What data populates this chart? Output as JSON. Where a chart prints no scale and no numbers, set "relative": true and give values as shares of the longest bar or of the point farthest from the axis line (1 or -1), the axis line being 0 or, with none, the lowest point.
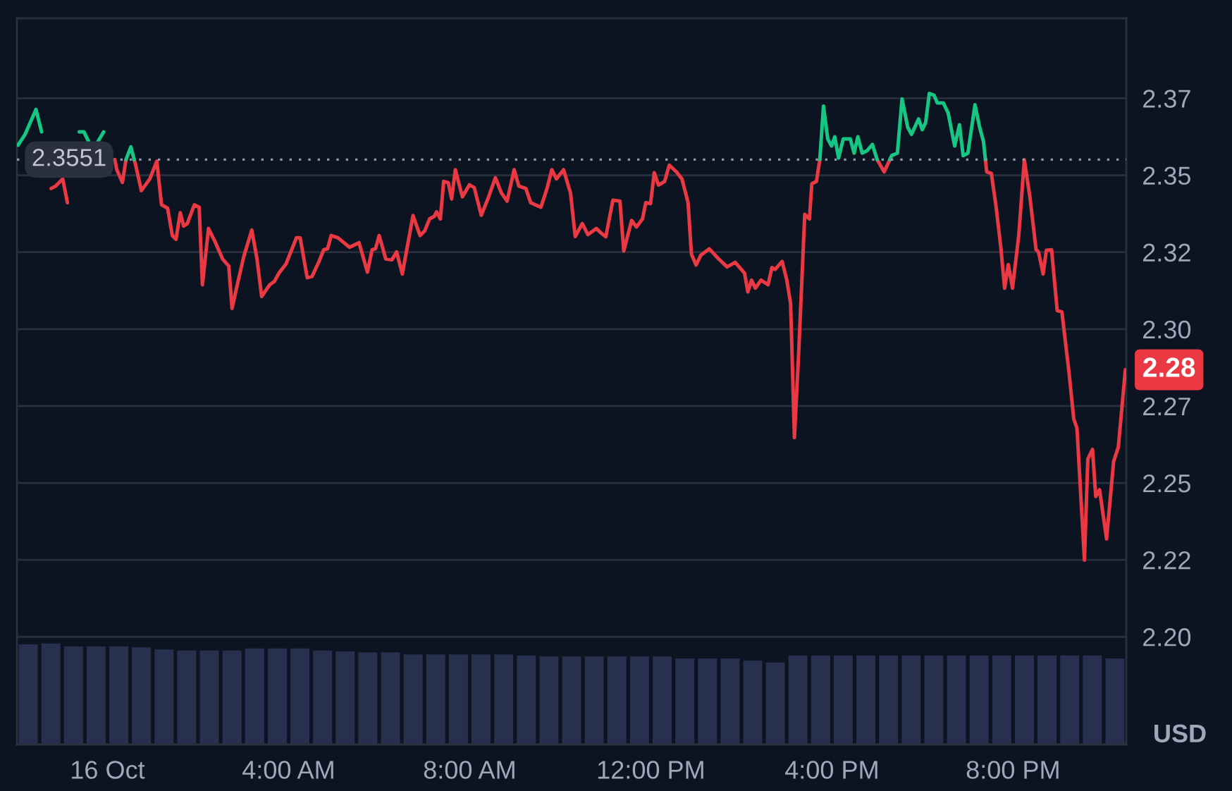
{
  "chart_data": [
    {
      "type": "line",
      "series": [
        {
          "color": "#ea3943",
          "x": [
            -1.246,
            -1.143,
            -0.988,
            -0.885,
            -0.779,
            0.162,
            0.206,
            0.33,
            0.409,
            0.517,
            0.59,
            0.623,
            0.748,
            0.935,
            1.09,
            1.193,
            1.327,
            1.433,
            1.514,
            1.607,
            1.682,
            1.763,
            1.919,
            2.025,
            2.097,
            2.231,
            2.386,
            2.542,
            2.679,
            2.751,
            2.854,
            3.009,
            3.187,
            3.302,
            3.405,
            3.508,
            3.583,
            3.685,
            3.788,
            3.944,
            4.174,
            4.255,
            4.411,
            4.517,
            4.673,
            4.776,
            4.86,
            4.941,
            5.087,
            5.346,
            5.555,
            5.741,
            5.844,
            5.919,
            6.0,
            6.146,
            6.28,
            6.386,
            6.511,
            6.748,
            6.903,
            7.009,
            7.112,
            7.215,
            7.268,
            7.352,
            7.424,
            7.526,
            7.601,
            7.682,
            7.838,
            7.994,
            8.1,
            8.255,
            8.411,
            8.567,
            8.701,
            8.826,
            8.981,
            9.084,
            9.24,
            9.346,
            9.573,
            9.707,
            9.813,
            9.916,
            10.072,
            10.227,
            10.33,
            10.486,
            10.611,
            10.798,
            10.903,
            11.006,
            11.162,
            11.318,
            11.402,
            11.576,
            11.682,
            11.816,
            11.888,
            11.994,
            12.075,
            12.168,
            12.305,
            12.408,
            12.564,
            12.688,
            12.822,
            12.897,
            13.0,
            13.103,
            13.29,
            13.498,
            13.685,
            13.863,
            14.069,
            14.143,
            14.224,
            14.308,
            14.433,
            14.589,
            14.673,
            14.745,
            14.9,
            15.003,
            15.087,
            15.171,
            15.265,
            15.399,
            15.502,
            15.555,
            15.657,
            15.732,
            15.813,
            16.997,
            17.153,
            17.279,
            17.321,
            19.389,
            19.417,
            19.52,
            19.626,
            19.729,
            19.813,
            19.894,
            19.988,
            20.125,
            20.249,
            20.374,
            20.508,
            20.561,
            20.664,
            20.735,
            20.85,
            20.975,
            21.078,
            21.234,
            21.34,
            21.411,
            21.576,
            21.651,
            21.754,
            21.826,
            21.91,
            22.065,
            22.221,
            22.324,
            22.48
          ],
          "values": [
            2.3457,
            2.3465,
            2.3488,
            2.3411,
            null,
            2.3551,
            2.3518,
            2.3477,
            2.3551,
            null,
            2.3551,
            2.3533,
            2.345,
            2.3488,
            2.3546,
            2.3404,
            2.3393,
            2.3304,
            2.3292,
            2.3378,
            2.3335,
            2.3343,
            2.3404,
            2.3396,
            2.3144,
            2.3327,
            2.3281,
            2.3228,
            2.3205,
            2.3067,
            2.3136,
            2.3235,
            2.3322,
            2.3228,
            2.3106,
            2.3128,
            2.3144,
            2.3155,
            2.3182,
            2.3212,
            2.3297,
            2.3297,
            2.3167,
            2.3171,
            2.322,
            2.3258,
            2.3261,
            2.3304,
            2.3297,
            2.3266,
            2.3281,
            2.3185,
            2.3258,
            2.3261,
            2.3304,
            2.3228,
            2.3225,
            2.3251,
            2.3179,
            2.3369,
            2.3304,
            2.332,
            2.3358,
            2.3366,
            2.3381,
            2.3358,
            2.348,
            2.3476,
            2.3423,
            2.3518,
            2.343,
            2.3469,
            2.346,
            2.337,
            2.3427,
            2.3492,
            2.3442,
            2.3416,
            2.3518,
            2.3465,
            2.3457,
            2.3411,
            2.3396,
            2.3457,
            2.3518,
            2.3488,
            2.3518,
            2.3442,
            2.3301,
            2.3343,
            2.3307,
            2.3327,
            2.3312,
            2.33,
            2.3419,
            2.3416,
            2.3254,
            2.3353,
            2.3332,
            2.3358,
            2.3411,
            2.3408,
            2.3508,
            2.3468,
            2.348,
            2.3533,
            2.3511,
            2.3488,
            2.3411,
            2.3243,
            2.3208,
            2.324,
            2.3261,
            2.3228,
            2.3202,
            2.3217,
            2.3182,
            2.3121,
            2.3159,
            2.3133,
            2.3159,
            2.3144,
            2.32,
            2.3194,
            2.322,
            2.3159,
            2.3083,
            2.2647,
            2.2922,
            2.3373,
            2.3358,
            2.3472,
            2.348,
            2.3551,
            null,
            2.3551,
            2.3511,
            2.3551,
            null,
            2.3551,
            2.3511,
            2.3506,
            2.3396,
            2.3266,
            2.3133,
            2.321,
            2.3133,
            2.3304,
            2.355,
            2.3427,
            2.3258,
            2.3251,
            2.3179,
            2.3256,
            2.3258,
            2.306,
            2.3056,
            2.2861,
            2.2708,
            2.2678,
            2.2249,
            2.2578,
            2.2609,
            2.2456,
            2.2478,
            2.2318,
            2.257,
            2.2616,
            2.2868
          ]
        },
        {
          "color": "#16c784",
          "x": [
            -1.975,
            -1.819,
            -1.579,
            -1.455,
            -1.353,
            -0.623,
            -0.52,
            -0.417,
            -0.312,
            -0.209,
            -0.084,
            0.103,
            0.409,
            0.517,
            0.59,
            0.623,
            15.732,
            15.813,
            15.907,
            15.991,
            16.062,
            16.146,
            16.249,
            16.405,
            16.489,
            16.573,
            16.667,
            16.769,
            16.894,
            16.997,
            17.153,
            17.279,
            17.321,
            17.445,
            17.548,
            17.673,
            17.757,
            17.913,
            17.994,
            18.069,
            18.15,
            18.255,
            18.327,
            18.461,
            18.567,
            18.71,
            18.816,
            18.897,
            19.003,
            19.159,
            19.262,
            19.346,
            19.389
          ],
          "values": [
            2.3598,
            2.3633,
            2.3714,
            2.3641,
            null,
            2.3641,
            2.3641,
            2.361,
            null,
            2.361,
            2.3641,
            null,
            2.3551,
            2.3592,
            2.3551,
            null,
            2.3551,
            2.3725,
            2.3618,
            2.3595,
            2.3625,
            2.3556,
            2.3618,
            2.3618,
            2.3572,
            2.3625,
            2.3572,
            2.3579,
            2.36,
            2.3551,
            null,
            2.3551,
            2.3564,
            2.3572,
            2.3748,
            2.3656,
            2.3633,
            2.3683,
            2.3648,
            2.3671,
            2.3766,
            2.376,
            2.3735,
            2.3735,
            2.3702,
            2.3595,
            2.3664,
            2.3564,
            2.3572,
            2.3729,
            2.3656,
            2.361,
            2.3551
          ]
        }
      ],
      "xlim": [
        -2.0,
        22.5
      ],
      "xticks": [
        {
          "value": 0,
          "label": "16 Oct"
        },
        {
          "value": 4,
          "label": "4:00 AM"
        },
        {
          "value": 8,
          "label": "8:00 AM"
        },
        {
          "value": 12,
          "label": "12:00 PM"
        },
        {
          "value": 16,
          "label": "4:00 PM"
        },
        {
          "value": 20,
          "label": "8:00 PM"
        }
      ],
      "ylim": [
        2.165,
        2.401
      ],
      "yticks": [
        {
          "value": 2.2,
          "label": "2.20"
        },
        {
          "value": 2.225,
          "label": "2.22"
        },
        {
          "value": 2.25,
          "label": "2.25"
        },
        {
          "value": 2.275,
          "label": "2.27"
        },
        {
          "value": 2.3,
          "label": "2.30"
        },
        {
          "value": 2.325,
          "label": "2.32"
        },
        {
          "value": 2.35,
          "label": "2.35"
        },
        {
          "value": 2.375,
          "label": "2.37"
        }
      ],
      "ylabel": "USD",
      "grid": "y",
      "ref_lines": [
        {
          "axis": "y",
          "value": 2.3551,
          "label": "2.3551",
          "line_style": "dotted",
          "color": "#8f96a8"
        }
      ],
      "annotations": [
        {
          "text": "2.28",
          "x": 22.48,
          "y": 2.2868
        }
      ]
    },
    {
      "type": "bar",
      "relative": true,
      "x": [
        -1.75,
        -1.25,
        -0.75,
        -0.25,
        0.25,
        0.75,
        1.25,
        1.75,
        2.25,
        2.75,
        3.25,
        3.75,
        4.25,
        4.75,
        5.25,
        5.75,
        6.25,
        6.75,
        7.25,
        7.75,
        8.25,
        8.75,
        9.25,
        9.75,
        10.25,
        10.75,
        11.25,
        11.75,
        12.25,
        12.75,
        13.25,
        13.75,
        14.25,
        14.75,
        15.25,
        15.75,
        16.25,
        16.75,
        17.25,
        17.75,
        18.25,
        18.75,
        19.25,
        19.75,
        20.25,
        20.75,
        21.25,
        21.75,
        22.25
      ],
      "values": [
        0.99,
        1,
        0.97,
        0.97,
        0.97,
        0.96,
        0.94,
        0.93,
        0.93,
        0.93,
        0.95,
        0.95,
        0.95,
        0.93,
        0.92,
        0.91,
        0.91,
        0.89,
        0.89,
        0.89,
        0.89,
        0.89,
        0.88,
        0.87,
        0.87,
        0.87,
        0.87,
        0.87,
        0.87,
        0.85,
        0.85,
        0.85,
        0.83,
        0.81,
        0.88,
        0.88,
        0.88,
        0.88,
        0.88,
        0.88,
        0.88,
        0.88,
        0.88,
        0.88,
        0.88,
        0.88,
        0.88,
        0.88,
        0.85
      ],
      "color": "#27304f",
      "xlim": [
        -2.0,
        22.5
      ],
      "tick_labels": false
    }
  ]
}
